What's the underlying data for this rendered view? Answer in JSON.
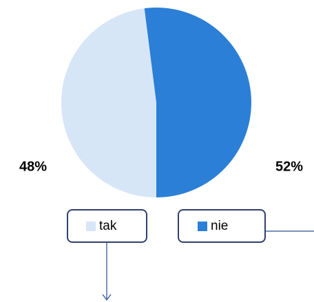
{
  "chart_data": {
    "type": "pie",
    "categories": [
      "tak",
      "nie"
    ],
    "values": [
      48,
      52
    ],
    "value_labels": [
      "48%",
      "52%"
    ],
    "colors": [
      "#d6e6f7",
      "#2b7fd6"
    ]
  }
}
